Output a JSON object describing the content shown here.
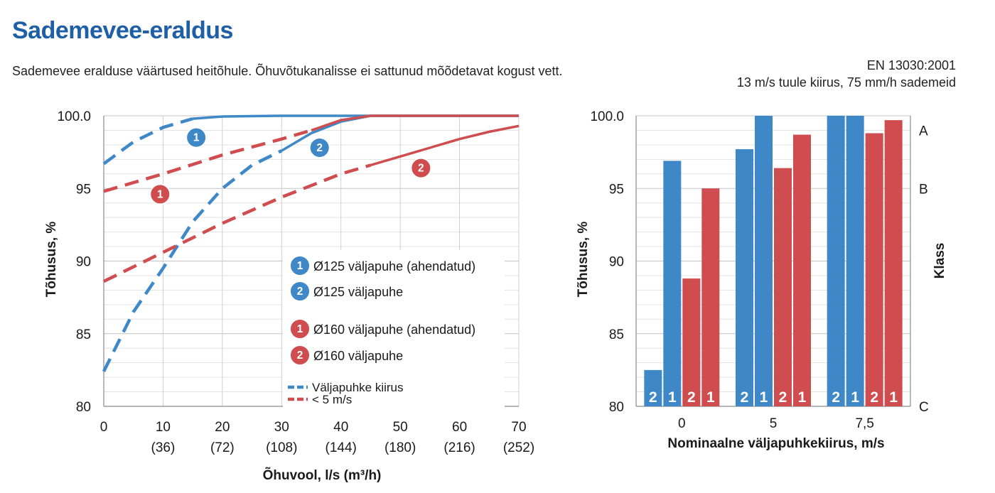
{
  "header": {
    "title": "Sademevee-eraldus",
    "subtitle": "Sademevee eralduse väärtused heitõhule. Õhuvõtukanalisse ei sattunud mõõdetavat kogust vett.",
    "standard": "EN 13030:2001",
    "conditions": "13 m/s tuule kiirus, 75 mm/h sademeid"
  },
  "colors": {
    "blue": "#3f88c8",
    "red": "#cf4d4f",
    "title_blue": "#1f5fa8",
    "grid": "#cfcfcf"
  },
  "chart_data": [
    {
      "type": "line",
      "ylabel": "Tõhusus, %",
      "xlabel": "Õhuvool, l/s (m³/h)",
      "xlim": [
        0,
        70
      ],
      "ylim": [
        80,
        100
      ],
      "y_ticks": [
        "80",
        "85",
        "90",
        "95",
        "100.0"
      ],
      "y_tick_values": [
        80,
        85,
        90,
        95,
        100
      ],
      "x_ticks": [
        "0",
        "10",
        "20",
        "30",
        "40",
        "50",
        "60",
        "70"
      ],
      "x_tick_values": [
        0,
        10,
        20,
        30,
        40,
        50,
        60,
        70
      ],
      "x_ticks_secondary": [
        "(36)",
        "(72)",
        "(108)",
        "(144)",
        "(180)",
        "(216)",
        "(252)"
      ],
      "grid": true,
      "legend": {
        "position": "bottom-right",
        "entries": [
          {
            "marker": "1",
            "color": "blue",
            "label": "Ø125 väljapuhe (ahendatud)"
          },
          {
            "marker": "2",
            "color": "blue",
            "label": "Ø125 väljapuhe"
          },
          {
            "marker": "1",
            "color": "red",
            "label": "Ø160 väljapuhe (ahendatud)"
          },
          {
            "marker": "2",
            "color": "red",
            "label": "Ø160 väljapuhe"
          }
        ],
        "dashed_entries": [
          {
            "color": "blue",
            "label": "Väljapuhke kiirus"
          },
          {
            "color": "red",
            "label": "< 5 m/s"
          }
        ]
      },
      "series": [
        {
          "marker": "1",
          "color": "blue",
          "dashed": [
            [
              0,
              96.7
            ],
            [
              5,
              98.2
            ],
            [
              10,
              99.2
            ],
            [
              15,
              99.8
            ]
          ],
          "solid": [
            [
              15,
              99.8
            ],
            [
              20,
              99.95
            ],
            [
              30,
              100
            ],
            [
              70,
              100
            ]
          ],
          "label_at": [
            15.6,
            98.5
          ]
        },
        {
          "marker": "2",
          "color": "blue",
          "dashed": [
            [
              0,
              82.4
            ],
            [
              5,
              86.5
            ],
            [
              10,
              89.5
            ],
            [
              15,
              92.7
            ],
            [
              20,
              95.0
            ],
            [
              25,
              96.6
            ],
            [
              30,
              97.6
            ]
          ],
          "solid": [
            [
              30,
              97.6
            ],
            [
              35,
              98.8
            ],
            [
              40,
              99.6
            ],
            [
              45,
              100
            ],
            [
              70,
              100
            ]
          ],
          "label_at": [
            36.4,
            97.8
          ]
        },
        {
          "marker": "1",
          "color": "red",
          "dashed": [
            [
              0,
              94.8
            ],
            [
              10,
              96.0
            ],
            [
              20,
              97.3
            ],
            [
              30,
              98.4
            ],
            [
              35,
              99.0
            ]
          ],
          "solid": [
            [
              35,
              99.0
            ],
            [
              40,
              99.7
            ],
            [
              45,
              100
            ],
            [
              70,
              100
            ]
          ],
          "label_at": [
            9.5,
            94.6
          ]
        },
        {
          "marker": "2",
          "color": "red",
          "dashed": [
            [
              0,
              88.6
            ],
            [
              10,
              90.6
            ],
            [
              20,
              92.6
            ],
            [
              30,
              94.4
            ],
            [
              40,
              96.0
            ],
            [
              45,
              96.6
            ]
          ],
          "solid": [
            [
              45,
              96.6
            ],
            [
              50,
              97.2
            ],
            [
              55,
              97.8
            ],
            [
              60,
              98.4
            ],
            [
              65,
              98.9
            ],
            [
              70,
              99.3
            ]
          ],
          "label_at": [
            53.5,
            96.4
          ]
        }
      ]
    },
    {
      "type": "bar",
      "ylabel": "Tõhusus,  %",
      "xlabel": "Nominaalne väljapuhkekiirus, m/s",
      "ylim": [
        80,
        100
      ],
      "y_ticks": [
        "80",
        "85",
        "90",
        "95",
        "100.0"
      ],
      "y_tick_values": [
        80,
        85,
        90,
        95,
        100
      ],
      "categories": [
        "0",
        "5",
        "7,5"
      ],
      "bars_order": [
        {
          "marker": "2",
          "color": "blue"
        },
        {
          "marker": "1",
          "color": "blue"
        },
        {
          "marker": "2",
          "color": "red"
        },
        {
          "marker": "1",
          "color": "red"
        }
      ],
      "series": [
        {
          "name": "",
          "marker": "2",
          "color": "blue",
          "values": [
            82.5,
            97.7,
            100
          ]
        },
        {
          "name": "",
          "marker": "1",
          "color": "blue",
          "values": [
            96.9,
            100,
            100
          ]
        },
        {
          "name": "",
          "marker": "2",
          "color": "red",
          "values": [
            88.8,
            96.4,
            98.8
          ]
        },
        {
          "name": "",
          "marker": "1",
          "color": "red",
          "values": [
            95.0,
            98.7,
            99.7
          ]
        }
      ],
      "secondary_axis": {
        "label": "Klass",
        "ticks": [
          {
            "label": "A",
            "value": 99.0
          },
          {
            "label": "B",
            "value": 95.0
          },
          {
            "label": "C",
            "value": 80.0
          }
        ]
      }
    }
  ]
}
